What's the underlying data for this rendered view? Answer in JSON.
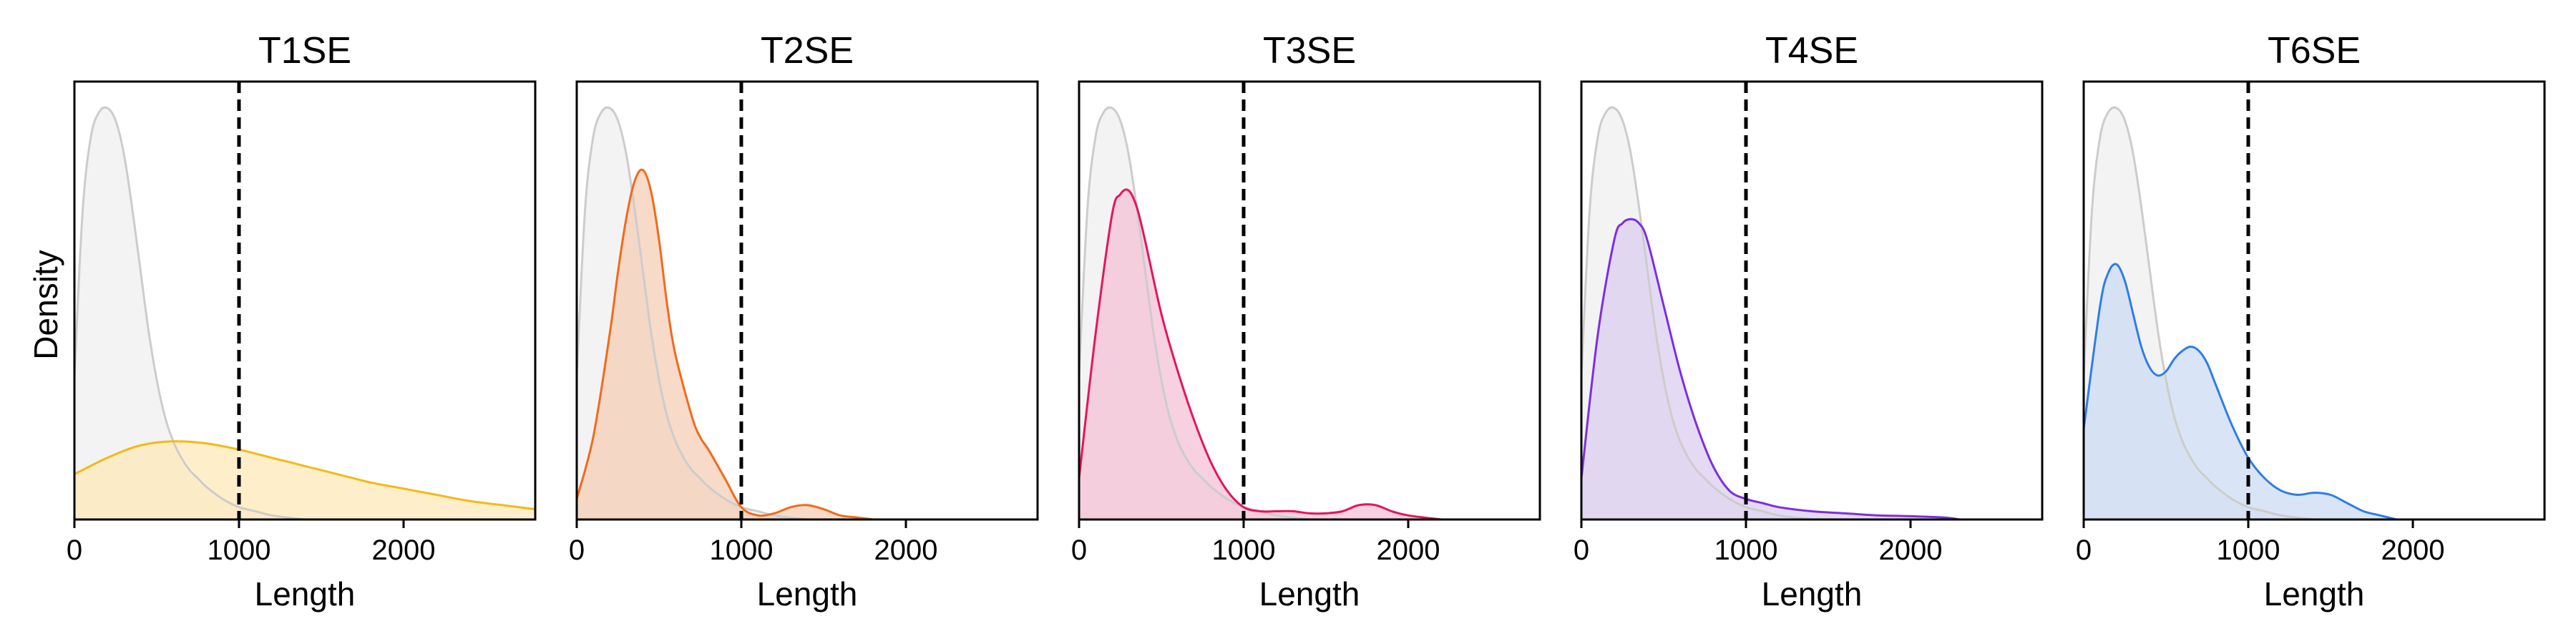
{
  "figure": {
    "ylabel": "Density"
  },
  "chart_data": [
    {
      "type": "area",
      "title": "T1SE",
      "xlabel": "Length",
      "ylabel": "Density",
      "xlim": [
        0,
        2800
      ],
      "xticks": [
        "0",
        "1000",
        "2000"
      ],
      "threshold": 1000,
      "color": "#f5b915",
      "fill": "#fde9b8",
      "background_color": "#cccccc",
      "background_fill": "#f2f2f2",
      "background": {
        "x": [
          0,
          50,
          100,
          150,
          200,
          250,
          300,
          350,
          400,
          450,
          500,
          550,
          600,
          650,
          700,
          750,
          800,
          900,
          1000,
          1100,
          1200,
          1400
        ],
        "y": [
          0.35,
          0.75,
          0.93,
          0.99,
          1.0,
          0.97,
          0.89,
          0.76,
          0.61,
          0.46,
          0.34,
          0.25,
          0.19,
          0.15,
          0.12,
          0.1,
          0.08,
          0.05,
          0.03,
          0.02,
          0.01,
          0
        ]
      },
      "series": {
        "x": [
          0,
          200,
          400,
          600,
          800,
          1000,
          1200,
          1400,
          1600,
          1800,
          2000,
          2200,
          2400,
          2600,
          2800
        ],
        "y": [
          0.11,
          0.15,
          0.18,
          0.19,
          0.185,
          0.17,
          0.15,
          0.13,
          0.11,
          0.09,
          0.075,
          0.06,
          0.045,
          0.035,
          0.025
        ]
      }
    },
    {
      "type": "area",
      "title": "T2SE",
      "xlabel": "Length",
      "xlim": [
        0,
        2800
      ],
      "xticks": [
        "0",
        "1000",
        "2000"
      ],
      "threshold": 1000,
      "color": "#f26a1b",
      "fill": "#f4cdb4",
      "background_color": "#cccccc",
      "background_fill": "#f2f2f2",
      "background": {
        "x": [
          0,
          50,
          100,
          150,
          200,
          250,
          300,
          350,
          400,
          450,
          500,
          550,
          600,
          650,
          700,
          750,
          800,
          900,
          1000,
          1100,
          1200,
          1400
        ],
        "y": [
          0.35,
          0.75,
          0.93,
          0.99,
          1.0,
          0.97,
          0.89,
          0.76,
          0.61,
          0.46,
          0.34,
          0.25,
          0.19,
          0.15,
          0.12,
          0.1,
          0.08,
          0.05,
          0.03,
          0.02,
          0.01,
          0
        ]
      },
      "series": {
        "x": [
          0,
          100,
          200,
          250,
          300,
          350,
          400,
          450,
          500,
          550,
          600,
          700,
          750,
          800,
          900,
          1000,
          1100,
          1200,
          1300,
          1400,
          1500,
          1600,
          1700,
          1800
        ],
        "y": [
          0.05,
          0.2,
          0.45,
          0.6,
          0.73,
          0.82,
          0.85,
          0.8,
          0.68,
          0.52,
          0.4,
          0.25,
          0.2,
          0.17,
          0.1,
          0.03,
          0.01,
          0.015,
          0.03,
          0.035,
          0.025,
          0.01,
          0.005,
          0
        ]
      }
    },
    {
      "type": "area",
      "title": "T3SE",
      "xlabel": "Length",
      "xlim": [
        0,
        2800
      ],
      "xticks": [
        "0",
        "1000",
        "2000"
      ],
      "threshold": 1000,
      "color": "#e5155a",
      "fill": "#f4c2d6",
      "background_color": "#cccccc",
      "background_fill": "#f2f2f2",
      "background": {
        "x": [
          0,
          50,
          100,
          150,
          200,
          250,
          300,
          350,
          400,
          450,
          500,
          550,
          600,
          650,
          700,
          750,
          800,
          900,
          1000,
          1100,
          1200,
          1400
        ],
        "y": [
          0.35,
          0.75,
          0.93,
          0.99,
          1.0,
          0.97,
          0.89,
          0.76,
          0.61,
          0.46,
          0.34,
          0.25,
          0.19,
          0.15,
          0.12,
          0.1,
          0.08,
          0.05,
          0.03,
          0.02,
          0.01,
          0
        ]
      },
      "series": {
        "x": [
          0,
          100,
          200,
          250,
          300,
          350,
          400,
          500,
          600,
          700,
          800,
          900,
          1000,
          1100,
          1200,
          1300,
          1400,
          1500,
          1600,
          1700,
          1800,
          1900,
          2000,
          2200
        ],
        "y": [
          0.1,
          0.45,
          0.74,
          0.79,
          0.8,
          0.76,
          0.68,
          0.5,
          0.36,
          0.24,
          0.14,
          0.07,
          0.03,
          0.02,
          0.02,
          0.02,
          0.015,
          0.015,
          0.02,
          0.035,
          0.035,
          0.02,
          0.01,
          0
        ]
      }
    },
    {
      "type": "area",
      "title": "T4SE",
      "xlabel": "Length",
      "xlim": [
        0,
        2800
      ],
      "xticks": [
        "0",
        "1000",
        "2000"
      ],
      "threshold": 1000,
      "color": "#7d2ee0",
      "fill": "#dccdf0",
      "background_color": "#cccccc",
      "background_fill": "#f2f2f2",
      "background": {
        "x": [
          0,
          50,
          100,
          150,
          200,
          250,
          300,
          350,
          400,
          450,
          500,
          550,
          600,
          650,
          700,
          750,
          800,
          900,
          1000,
          1100,
          1200,
          1400
        ],
        "y": [
          0.35,
          0.75,
          0.93,
          0.99,
          1.0,
          0.97,
          0.89,
          0.76,
          0.61,
          0.46,
          0.34,
          0.25,
          0.19,
          0.15,
          0.12,
          0.1,
          0.08,
          0.05,
          0.03,
          0.02,
          0.01,
          0
        ]
      },
      "series": {
        "x": [
          0,
          100,
          200,
          250,
          300,
          350,
          400,
          500,
          600,
          700,
          800,
          900,
          1000,
          1100,
          1200,
          1400,
          1600,
          1800,
          2000,
          2200,
          2300
        ],
        "y": [
          0.1,
          0.45,
          0.68,
          0.72,
          0.73,
          0.72,
          0.68,
          0.52,
          0.36,
          0.23,
          0.13,
          0.07,
          0.05,
          0.04,
          0.03,
          0.02,
          0.015,
          0.01,
          0.008,
          0.005,
          0
        ]
      }
    },
    {
      "type": "area",
      "title": "T6SE",
      "xlabel": "Length",
      "xlim": [
        0,
        2800
      ],
      "xticks": [
        "0",
        "1000",
        "2000"
      ],
      "threshold": 1000,
      "color": "#2e7de8",
      "fill": "#ccdcf3",
      "background_color": "#cccccc",
      "background_fill": "#f2f2f2",
      "background": {
        "x": [
          0,
          50,
          100,
          150,
          200,
          250,
          300,
          350,
          400,
          450,
          500,
          550,
          600,
          650,
          700,
          750,
          800,
          900,
          1000,
          1100,
          1200,
          1400
        ],
        "y": [
          0.35,
          0.75,
          0.93,
          0.99,
          1.0,
          0.97,
          0.89,
          0.76,
          0.61,
          0.46,
          0.34,
          0.25,
          0.19,
          0.15,
          0.12,
          0.1,
          0.08,
          0.05,
          0.03,
          0.02,
          0.01,
          0
        ]
      },
      "series": {
        "x": [
          0,
          100,
          150,
          200,
          250,
          300,
          350,
          400,
          450,
          500,
          550,
          600,
          650,
          700,
          750,
          800,
          900,
          1000,
          1100,
          1200,
          1300,
          1400,
          1500,
          1600,
          1700,
          1800,
          1900
        ],
        "y": [
          0.22,
          0.52,
          0.6,
          0.62,
          0.58,
          0.5,
          0.42,
          0.37,
          0.35,
          0.36,
          0.39,
          0.41,
          0.42,
          0.41,
          0.38,
          0.33,
          0.23,
          0.15,
          0.1,
          0.07,
          0.06,
          0.065,
          0.06,
          0.04,
          0.02,
          0.01,
          0
        ]
      }
    }
  ]
}
